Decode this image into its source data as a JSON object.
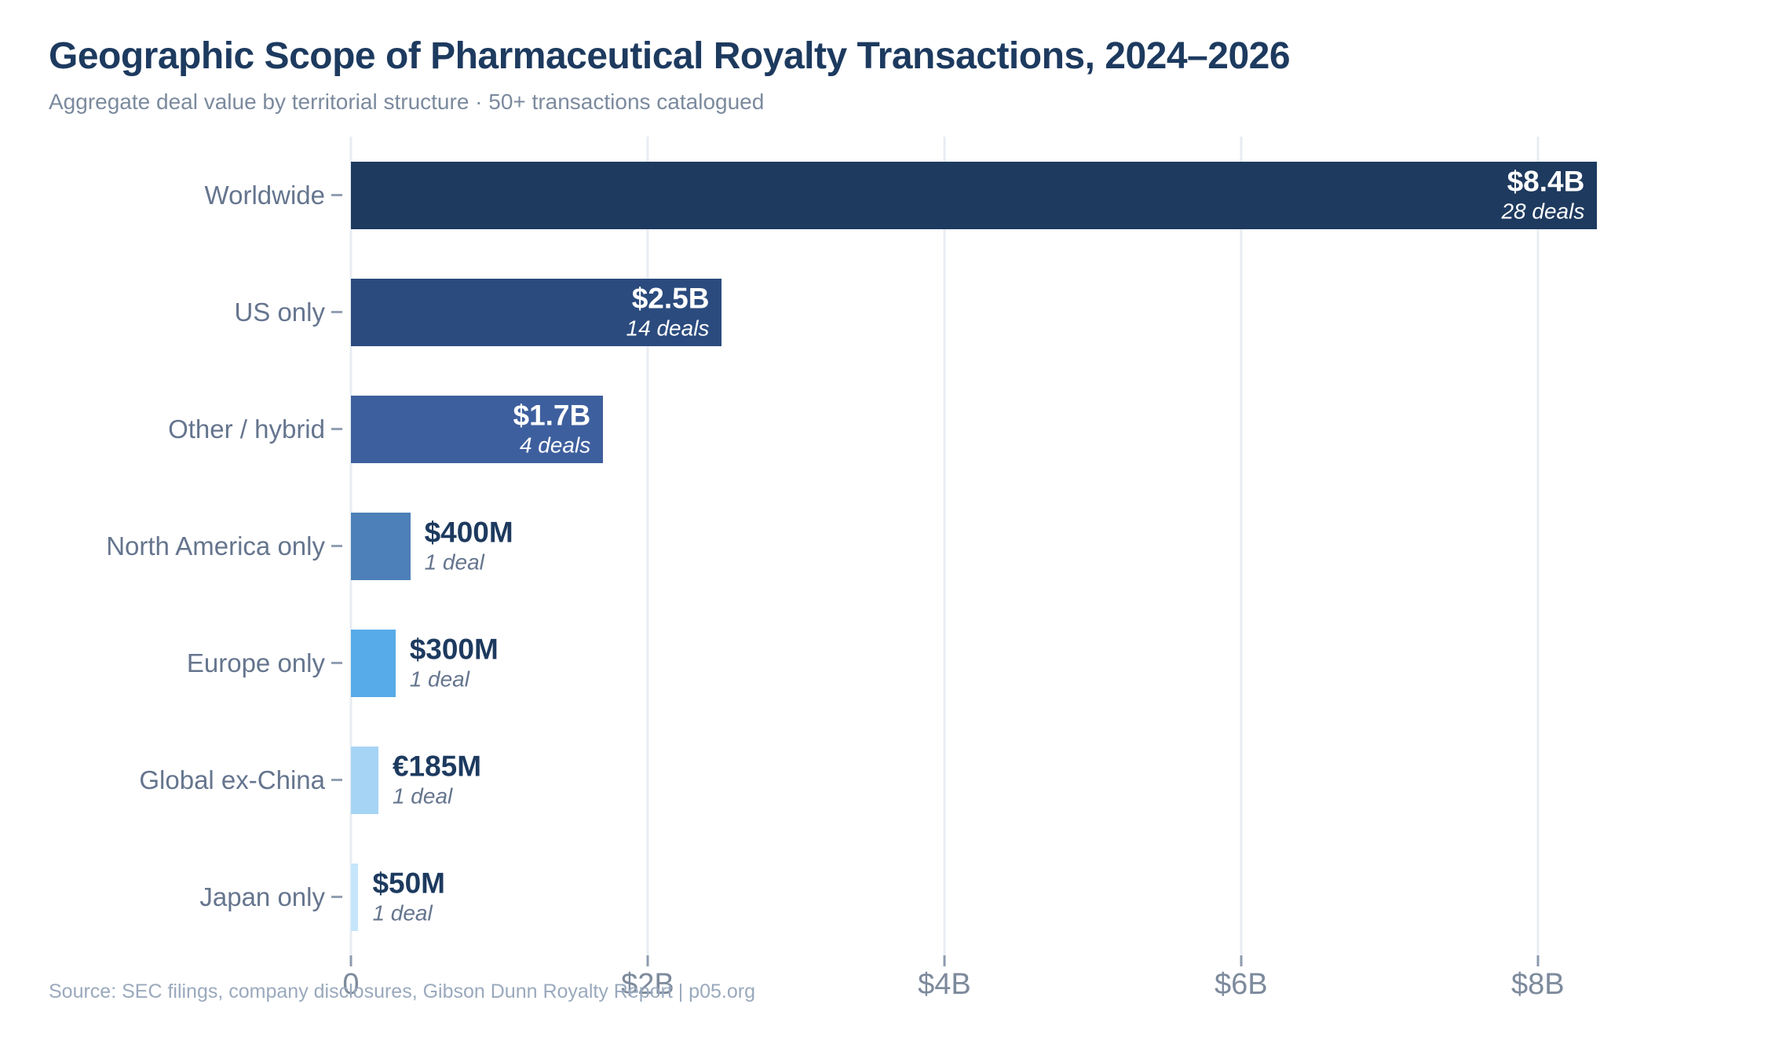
{
  "header": {
    "title": "Geographic Scope of Pharmaceutical Royalty Transactions, 2024–2026",
    "subtitle": "Aggregate deal value by territorial structure · 50+ transactions catalogued"
  },
  "chart_data": {
    "type": "bar",
    "orientation": "horizontal",
    "title": "Geographic Scope of Pharmaceutical Royalty Transactions, 2024–2026",
    "subtitle": "Aggregate deal value by territorial structure · 50+ transactions catalogued",
    "categories": [
      "Worldwide",
      "US only",
      "Other / hybrid",
      "North America only",
      "Europe only",
      "Global ex-China",
      "Japan only"
    ],
    "values_usd_billions": [
      8.4,
      2.5,
      1.7,
      0.4,
      0.3,
      0.185,
      0.05
    ],
    "value_labels": [
      "$8.4B",
      "$2.5B",
      "$1.7B",
      "$400M",
      "$300M",
      "€185M",
      "$50M"
    ],
    "deal_counts": [
      28,
      14,
      4,
      1,
      1,
      1,
      1
    ],
    "deal_labels": [
      "28 deals",
      "14 deals",
      "4 deals",
      "1 deal",
      "1 deal",
      "1 deal",
      "1 deal"
    ],
    "bar_colors": [
      "#1e3a5f",
      "#2b4b7e",
      "#3e5f9e",
      "#4d80b8",
      "#57abe8",
      "#a6d4f4",
      "#c5e5fa"
    ],
    "label_inside": [
      true,
      true,
      true,
      false,
      false,
      false,
      false
    ],
    "x_ticks": {
      "labels": [
        "0",
        "$2B",
        "$4B",
        "$6B",
        "$8B"
      ],
      "values": [
        0,
        2,
        4,
        6,
        8
      ]
    },
    "xlim": [
      0,
      9.7
    ],
    "grid": "vertical-light",
    "xlabel": "",
    "ylabel": ""
  },
  "footer": {
    "source": "Source: SEC filings, company disclosures, Gibson Dunn Royalty Report | p05.org"
  }
}
